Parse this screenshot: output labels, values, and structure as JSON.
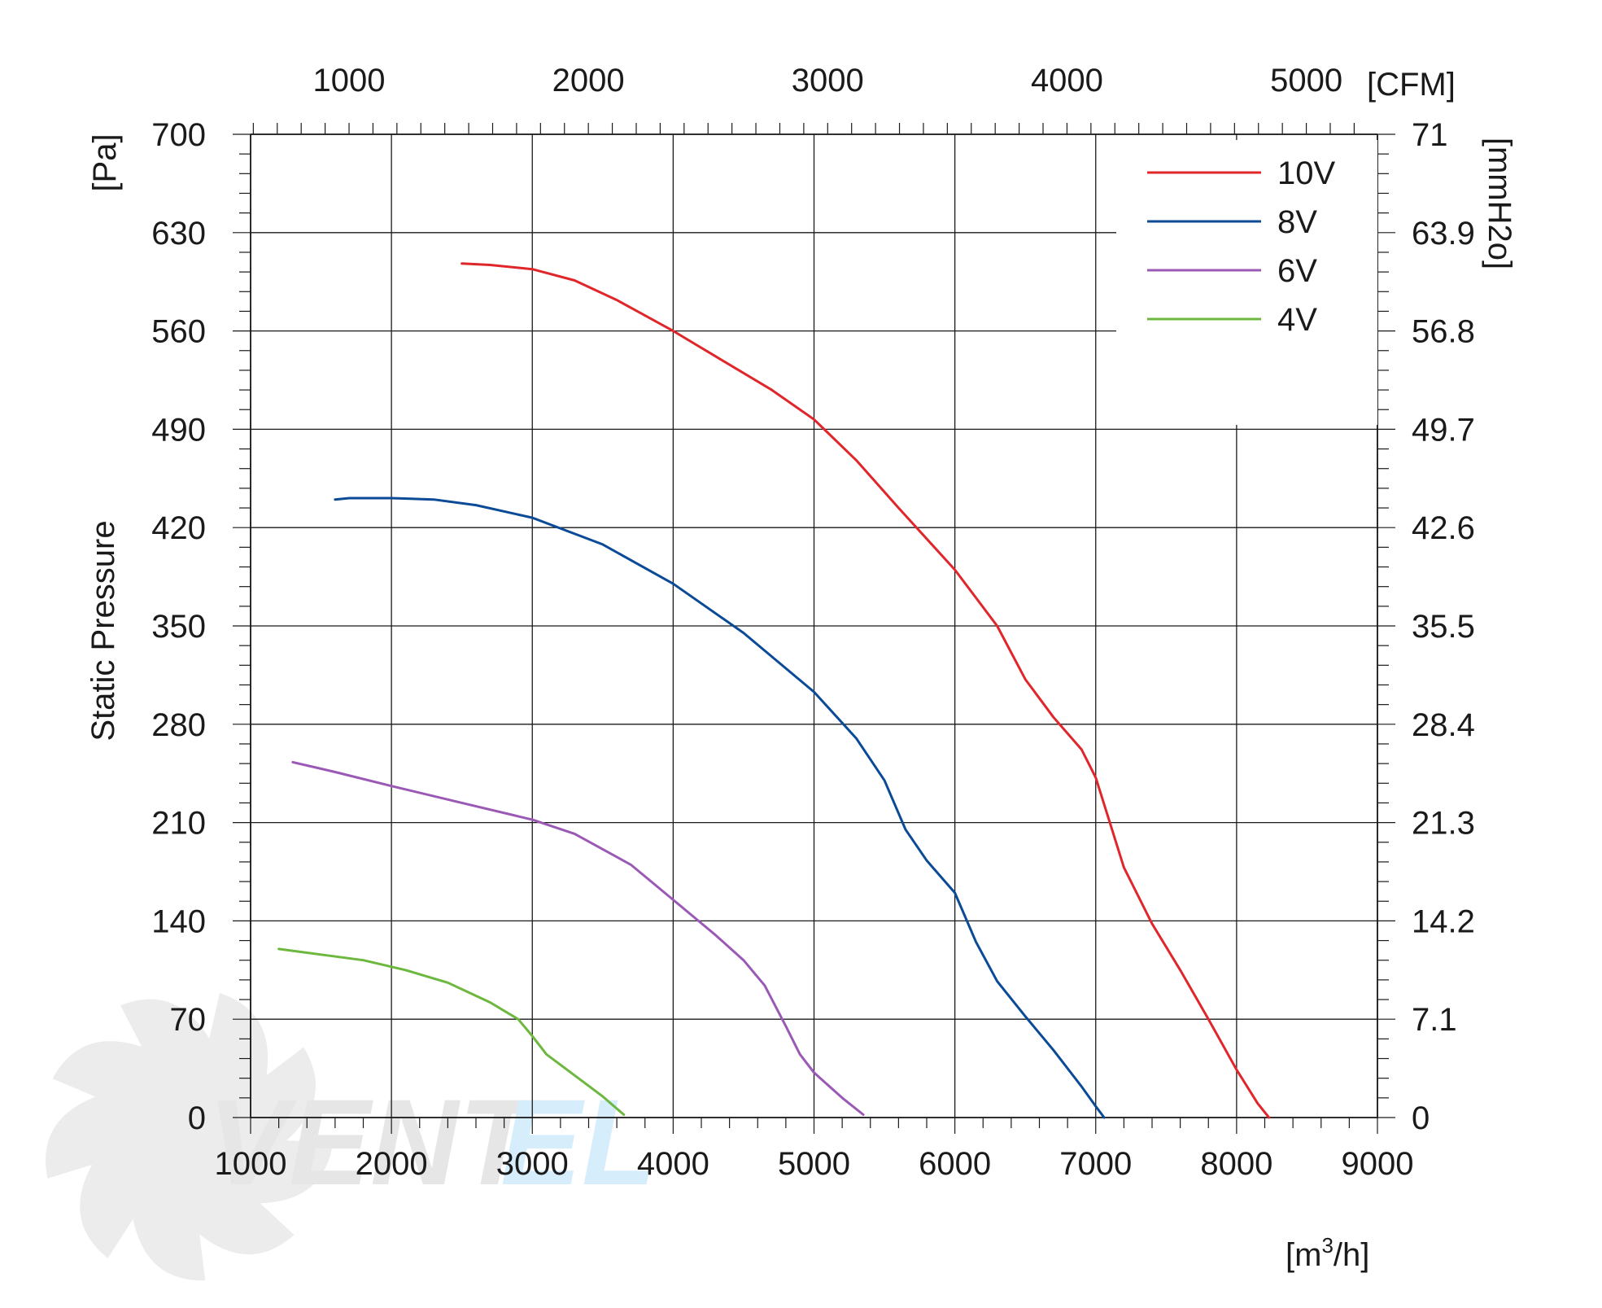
{
  "chart_data": {
    "type": "line",
    "title": "",
    "xlabel": "[m³/h]",
    "xlabel_base": "[m",
    "xlabel_sup": "3",
    "xlabel_tail": "/h]",
    "ylabel": "Static Pressure",
    "ylabel_unit": "[Pa]",
    "y2label": "[mmH2o]",
    "x2label": "[CFM]",
    "xlim": [
      1000,
      9000
    ],
    "ylim": [
      0,
      700
    ],
    "x_ticks": [
      1000,
      2000,
      3000,
      4000,
      5000,
      6000,
      7000,
      8000,
      9000
    ],
    "x_tick_labels": [
      "1000",
      "2000",
      "3000",
      "4000",
      "5000",
      "6000",
      "7000",
      "8000",
      "9000"
    ],
    "y_ticks": [
      0,
      70,
      140,
      210,
      280,
      350,
      420,
      490,
      560,
      630,
      700
    ],
    "y_tick_labels": [
      "0",
      "70",
      "140",
      "210",
      "280",
      "350",
      "420",
      "490",
      "560",
      "630",
      "700"
    ],
    "y2_tick_labels": [
      "0",
      "7.1",
      "14.2",
      "21.3",
      "28.4",
      "35.5",
      "42.6",
      "49.7",
      "56.8",
      "63.9",
      "71"
    ],
    "cfm_ticks": [
      1000,
      2000,
      3000,
      4000,
      5000
    ],
    "cfm_tick_labels": [
      "1000",
      "2000",
      "3000",
      "4000",
      "5000"
    ],
    "cfm_to_m3h": 1.699,
    "grid": true,
    "legend_position": "top-right",
    "series": [
      {
        "name": "10V",
        "color": "#e0262a",
        "points": [
          [
            2500,
            608
          ],
          [
            2700,
            607
          ],
          [
            3000,
            604
          ],
          [
            3300,
            596
          ],
          [
            3600,
            582
          ],
          [
            4000,
            560
          ],
          [
            4300,
            542
          ],
          [
            4700,
            518
          ],
          [
            5000,
            497
          ],
          [
            5300,
            468
          ],
          [
            5600,
            434
          ],
          [
            6000,
            390
          ],
          [
            6300,
            350
          ],
          [
            6500,
            312
          ],
          [
            6700,
            285
          ],
          [
            6900,
            262
          ],
          [
            7000,
            242
          ],
          [
            7100,
            210
          ],
          [
            7200,
            178
          ],
          [
            7400,
            138
          ],
          [
            7600,
            105
          ],
          [
            7800,
            70
          ],
          [
            8000,
            34
          ],
          [
            8150,
            10
          ],
          [
            8230,
            0
          ]
        ]
      },
      {
        "name": "8V",
        "color": "#0a4a97",
        "points": [
          [
            1600,
            440
          ],
          [
            1700,
            441
          ],
          [
            2000,
            441
          ],
          [
            2300,
            440
          ],
          [
            2600,
            436
          ],
          [
            3000,
            427
          ],
          [
            3500,
            408
          ],
          [
            4000,
            380
          ],
          [
            4500,
            345
          ],
          [
            5000,
            303
          ],
          [
            5300,
            270
          ],
          [
            5500,
            240
          ],
          [
            5650,
            205
          ],
          [
            5800,
            183
          ],
          [
            6000,
            160
          ],
          [
            6150,
            125
          ],
          [
            6300,
            97
          ],
          [
            6500,
            72
          ],
          [
            6700,
            48
          ],
          [
            6900,
            22
          ],
          [
            7000,
            8
          ],
          [
            7060,
            0
          ]
        ]
      },
      {
        "name": "6V",
        "color": "#9b59b6",
        "points": [
          [
            1300,
            253
          ],
          [
            1600,
            246
          ],
          [
            2000,
            236
          ],
          [
            2500,
            224
          ],
          [
            3000,
            212
          ],
          [
            3300,
            202
          ],
          [
            3700,
            180
          ],
          [
            4000,
            155
          ],
          [
            4300,
            130
          ],
          [
            4500,
            112
          ],
          [
            4650,
            94
          ],
          [
            4800,
            65
          ],
          [
            4900,
            45
          ],
          [
            5000,
            32
          ],
          [
            5200,
            14
          ],
          [
            5350,
            2
          ]
        ]
      },
      {
        "name": "4V",
        "color": "#6cb83e",
        "points": [
          [
            1200,
            120
          ],
          [
            1500,
            116
          ],
          [
            1800,
            112
          ],
          [
            2100,
            105
          ],
          [
            2400,
            96
          ],
          [
            2700,
            82
          ],
          [
            2900,
            70
          ],
          [
            3000,
            58
          ],
          [
            3100,
            45
          ],
          [
            3300,
            30
          ],
          [
            3500,
            15
          ],
          [
            3650,
            2
          ]
        ]
      }
    ]
  },
  "watermark": {
    "text_main": "VENT",
    "text_accent": "EL",
    "color_main": "#e6e6e6",
    "color_accent": "#d6eefc"
  },
  "colors": {
    "grid": "#1a1a1a",
    "axis": "#1a1a1a",
    "background": "#ffffff"
  }
}
